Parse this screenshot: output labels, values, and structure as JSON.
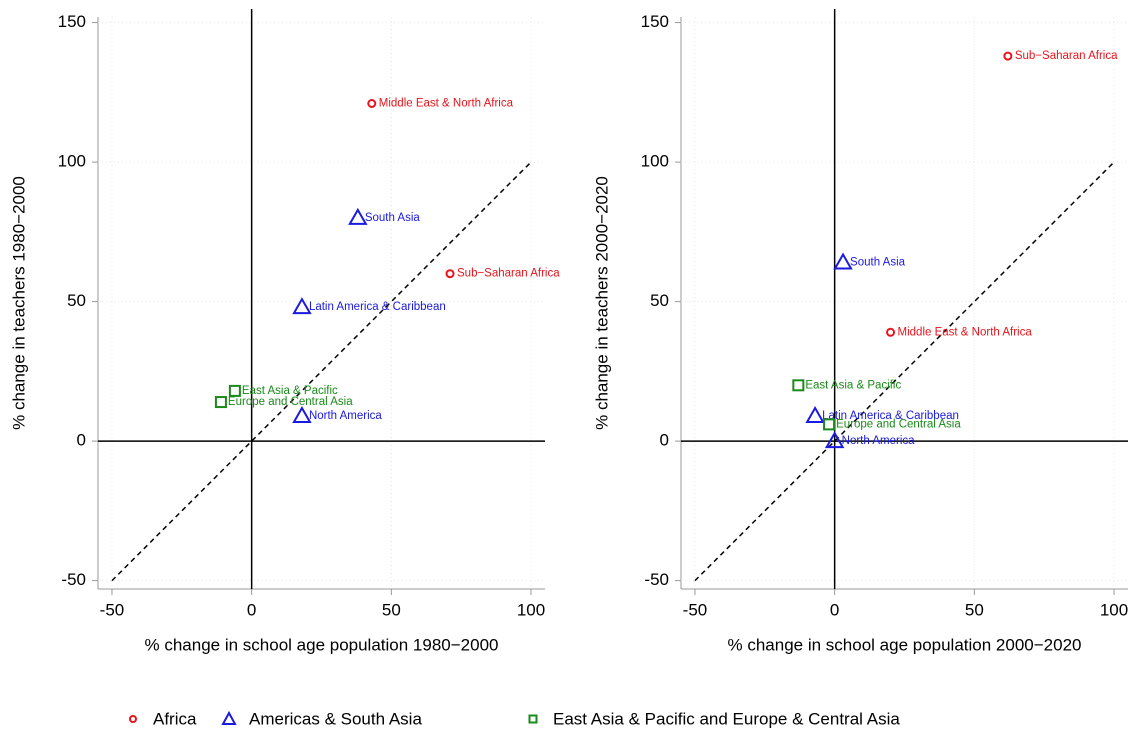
{
  "chart_data": [
    {
      "type": "scatter",
      "xlabel": "% change in school age population 1980−2000",
      "ylabel": "% change in teachers 1980−2000",
      "xlim": [
        -55,
        105
      ],
      "ylim": [
        -53,
        152
      ],
      "xticks": [
        -50,
        0,
        50,
        100
      ],
      "yticks": [
        -50,
        0,
        50,
        100,
        150
      ],
      "grid": true,
      "zero_lines": true,
      "diagonal": [
        -50,
        100
      ],
      "series": [
        {
          "name": "Africa",
          "color": "#e8141c",
          "marker": "circle",
          "x": [
            43,
            71
          ],
          "y": [
            121,
            60
          ],
          "labels": [
            "Middle East & North Africa",
            "Sub−Saharan Africa"
          ]
        },
        {
          "name": "Americas & South Asia",
          "color": "#1a1ae0",
          "marker": "triangle",
          "x": [
            38,
            18,
            18
          ],
          "y": [
            80,
            48,
            9
          ],
          "labels": [
            "South Asia",
            "Latin America & Caribbean",
            "North America"
          ]
        },
        {
          "name": "East Asia & Pacific and Europe & Central Asia",
          "color": "#1a8a1a",
          "marker": "square",
          "x": [
            -6,
            -11
          ],
          "y": [
            18,
            14
          ],
          "labels": [
            "East Asia & Pacific",
            "Europe and Central Asia"
          ]
        }
      ]
    },
    {
      "type": "scatter",
      "xlabel": "% change in school age population 2000−2020",
      "ylabel": "% change in teachers 2000−2020",
      "xlim": [
        -55,
        105
      ],
      "ylim": [
        -53,
        152
      ],
      "xticks": [
        -50,
        0,
        50,
        100
      ],
      "yticks": [
        -50,
        0,
        50,
        100,
        150
      ],
      "grid": true,
      "zero_lines": true,
      "diagonal": [
        -50,
        100
      ],
      "series": [
        {
          "name": "Africa",
          "color": "#e8141c",
          "marker": "circle",
          "x": [
            62,
            20
          ],
          "y": [
            138,
            39
          ],
          "labels": [
            "Sub−Saharan Africa",
            "Middle East & North Africa"
          ]
        },
        {
          "name": "Americas & South Asia",
          "color": "#1a1ae0",
          "marker": "triangle",
          "x": [
            3,
            -7,
            0
          ],
          "y": [
            64,
            9,
            0
          ],
          "labels": [
            "South Asia",
            "Latin America & Caribbean",
            "North America"
          ]
        },
        {
          "name": "East Asia & Pacific and Europe & Central Asia",
          "color": "#1a8a1a",
          "marker": "square",
          "x": [
            -13,
            -2
          ],
          "y": [
            20,
            6
          ],
          "labels": [
            "East Asia & Pacific",
            "Europe and Central Asia"
          ]
        }
      ]
    }
  ]
}
